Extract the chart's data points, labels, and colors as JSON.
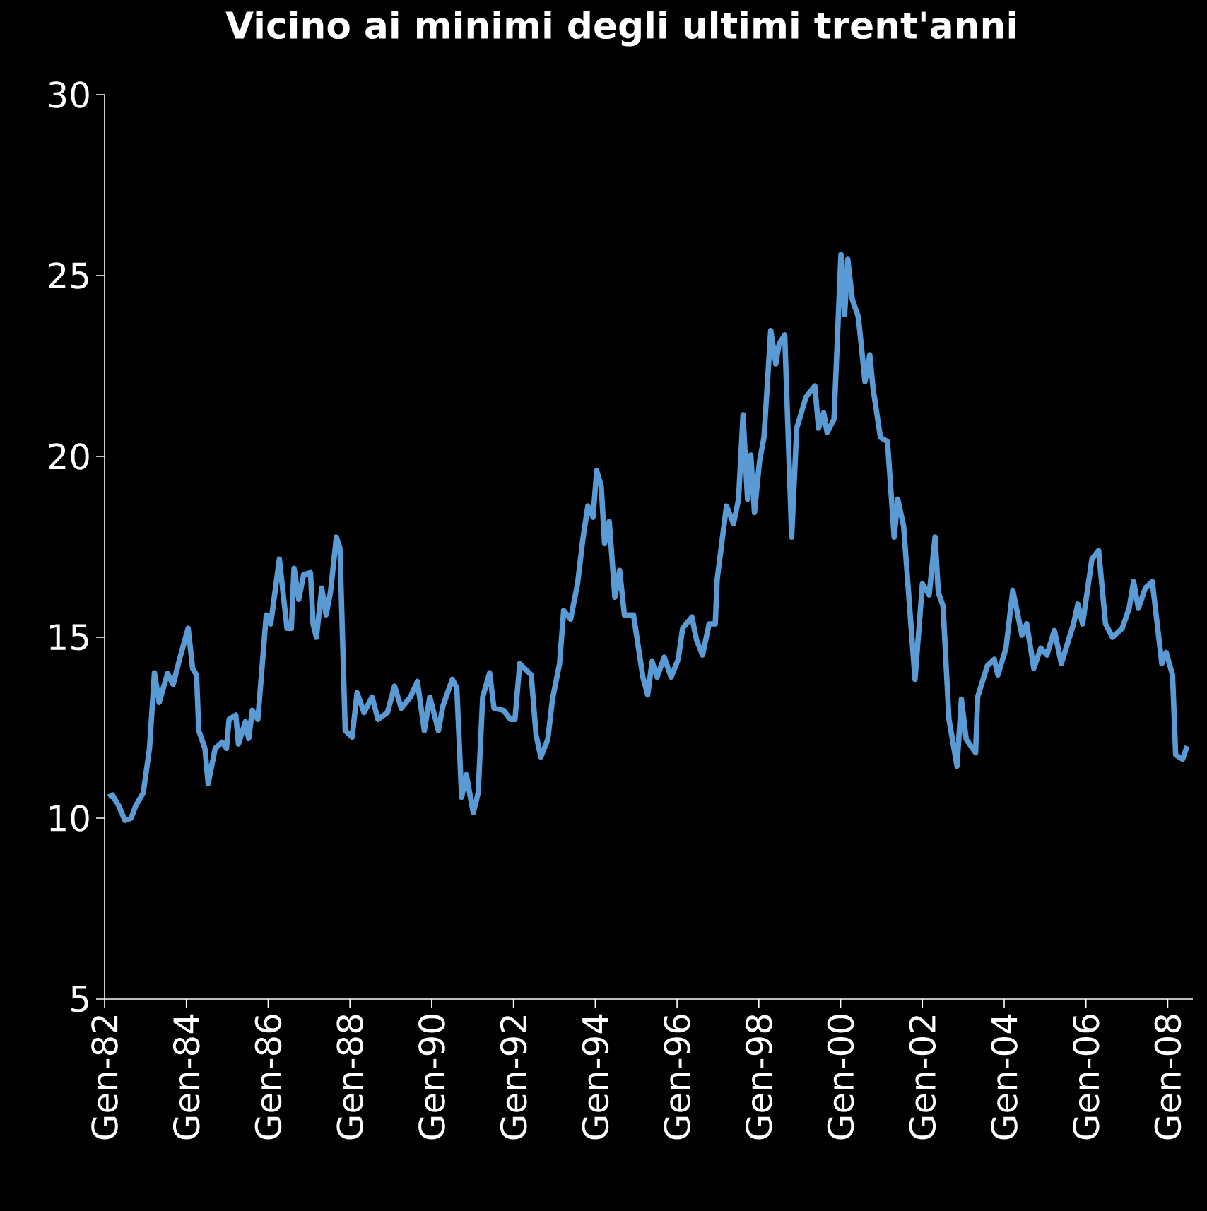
{
  "chart_data": {
    "type": "line",
    "title": "Vicino ai minimi degli ultimi trent'anni",
    "x": [
      "1982-02-06",
      "1982-03-12",
      "1982-05-06",
      "1982-07-01",
      "1982-08-26",
      "1982-10-07",
      "1982-12-12",
      "1983-02-06",
      "1983-03-22",
      "1983-05-03",
      "1983-07-17",
      "1983-09-05",
      "1983-11-06",
      "1984-01-17",
      "1984-02-26",
      "1984-04-01",
      "1984-04-21",
      "1984-06-15",
      "1984-07-14",
      "1984-09-15",
      "1984-11-16",
      "1984-12-25",
      "1985-01-17",
      "1985-03-18",
      "1985-04-11",
      "1985-06-12",
      "1985-07-11",
      "1985-08-13",
      "1985-10-01",
      "1985-12-15",
      "1986-01-24",
      "1986-04-11",
      "1986-06-18",
      "1986-07-27",
      "1986-08-20",
      "1986-10-01",
      "1986-11-13",
      "1987-01-14",
      "1987-02-06",
      "1987-03-08",
      "1987-04-24",
      "1987-06-02",
      "1987-07-11",
      "1987-09-02",
      "1987-10-04",
      "1987-11-20",
      "1988-01-21",
      "1988-03-05",
      "1988-05-06",
      "1988-07-17",
      "1988-09-08",
      "1988-12-02",
      "1989-02-03",
      "1989-04-04",
      "1989-06-25",
      "1989-08-26",
      "1989-10-27",
      "1989-12-15",
      "1990-03-02",
      "1990-04-11",
      "1990-07-04",
      "1990-08-13",
      "1990-09-25",
      "1990-11-06",
      "1991-01-07",
      "1991-02-20",
      "1991-04-01",
      "1991-06-02",
      "1991-07-11",
      "1991-10-04",
      "1991-12-05",
      "1992-01-14",
      "1992-02-26",
      "1992-06-08",
      "1992-07-21",
      "1992-09-02",
      "1992-11-03",
      "1992-12-15",
      "1993-02-16",
      "1993-03-25",
      "1993-05-26",
      "1993-07-27",
      "1993-09-12",
      "1993-10-27",
      "1993-12-12",
      "1994-01-14",
      "1994-02-23",
      "1994-03-25",
      "1994-05-06",
      "1994-06-25",
      "1994-08-06",
      "1994-09-18",
      "1994-12-08",
      "1995-03-02",
      "1995-04-14",
      "1995-05-23",
      "1995-07-07",
      "1995-09-08",
      "1995-11-09",
      "1996-01-11",
      "1996-02-20",
      "1996-05-13",
      "1996-06-22",
      "1996-08-16",
      "1996-10-14",
      "1996-12-08",
      "1996-12-25",
      "1997-03-18",
      "1997-05-20",
      "1997-07-04",
      "1997-08-13",
      "1997-09-22",
      "1997-10-21",
      "1997-11-23",
      "1998-01-07",
      "1998-02-16",
      "1998-04-17",
      "1998-06-02",
      "1998-07-01",
      "1998-08-20",
      "1998-10-21",
      "1998-12-05",
      "1999-02-26",
      "1999-05-16",
      "1999-06-18",
      "1999-08-03",
      "1999-09-02",
      "1999-11-03",
      "2000-01-04",
      "2000-02-06",
      "2000-03-05",
      "2000-04-14",
      "2000-06-08",
      "2000-08-06",
      "2000-09-18",
      "2000-10-17",
      "2000-12-22",
      "2001-02-23",
      "2001-04-24",
      "2001-05-26",
      "2001-07-17",
      "2001-10-27",
      "2002-01-01",
      "2002-03-02",
      "2002-04-24",
      "2002-05-23",
      "2002-07-04",
      "2002-08-26",
      "2002-11-06",
      "2002-12-15",
      "2003-01-27",
      "2003-04-21",
      "2003-05-09",
      "2003-08-03",
      "2003-10-04",
      "2003-11-06",
      "2004-01-17",
      "2004-03-18",
      "2004-06-08",
      "2004-07-21",
      "2004-09-22",
      "2004-11-23",
      "2005-01-17",
      "2005-03-25",
      "2005-05-26",
      "2005-09-12",
      "2005-10-21",
      "2005-12-02",
      "2006-02-23",
      "2006-04-24",
      "2006-06-25",
      "2006-08-26",
      "2006-11-20",
      "2007-01-21",
      "2007-03-02",
      "2007-04-14",
      "2007-06-15",
      "2007-08-16",
      "2007-11-09",
      "2007-12-18",
      "2008-02-13",
      "2008-03-12",
      "2008-05-13",
      "2008-06-22"
    ],
    "series": [
      {
        "color": "#5b9bd5",
        "values": [
          10.58,
          10.64,
          10.35,
          9.94,
          10.0,
          10.35,
          10.7,
          11.93,
          14.02,
          13.2,
          14.0,
          13.7,
          14.45,
          15.25,
          14.14,
          13.96,
          12.42,
          11.93,
          10.95,
          11.93,
          12.1,
          11.93,
          12.73,
          12.85,
          12.05,
          12.67,
          12.2,
          12.98,
          12.73,
          15.62,
          15.37,
          17.16,
          15.25,
          15.25,
          16.91,
          16.05,
          16.73,
          16.79,
          15.37,
          15.0,
          16.36,
          15.62,
          16.24,
          17.77,
          17.46,
          12.42,
          12.24,
          13.47,
          12.92,
          13.35,
          12.73,
          12.92,
          13.65,
          13.04,
          13.35,
          13.78,
          12.42,
          13.35,
          12.42,
          13.1,
          13.84,
          13.6,
          10.58,
          11.2,
          10.15,
          10.7,
          13.35,
          14.02,
          13.04,
          12.98,
          12.73,
          12.73,
          14.27,
          13.96,
          12.3,
          11.69,
          12.18,
          13.29,
          14.27,
          15.74,
          15.5,
          16.48,
          17.71,
          18.63,
          18.32,
          19.61,
          19.18,
          17.59,
          18.2,
          16.11,
          16.85,
          15.62,
          15.62,
          13.9,
          13.41,
          14.33,
          13.9,
          14.45,
          13.9,
          14.39,
          15.25,
          15.56,
          14.94,
          14.51,
          15.37,
          15.37,
          16.6,
          18.63,
          18.14,
          18.82,
          21.15,
          18.82,
          20.04,
          18.45,
          19.86,
          20.53,
          23.48,
          22.56,
          23.11,
          23.36,
          17.77,
          20.78,
          21.64,
          21.95,
          20.78,
          21.21,
          20.66,
          21.03,
          25.58,
          23.92,
          25.45,
          24.35,
          23.85,
          22.07,
          22.81,
          21.89,
          20.53,
          20.41,
          17.77,
          18.82,
          18.08,
          13.84,
          16.48,
          16.17,
          17.77,
          16.24,
          15.87,
          12.73,
          11.44,
          13.29,
          12.18,
          11.81,
          13.35,
          14.21,
          14.39,
          13.96,
          14.7,
          16.3,
          15.06,
          15.37,
          14.14,
          14.7,
          14.51,
          15.19,
          14.27,
          15.37,
          15.92,
          15.37,
          17.16,
          17.4,
          15.37,
          15.0,
          15.25,
          15.8,
          16.54,
          15.8,
          16.36,
          16.54,
          14.27,
          14.58,
          13.96,
          11.75,
          11.63,
          11.99
        ]
      }
    ],
    "xlim": [
      "1982-01-01",
      "2008-08-13"
    ],
    "ylim": [
      5,
      30
    ],
    "xticks": [
      {
        "value": "1982-01-01",
        "label": "Gen-82"
      },
      {
        "value": "1984-01-01",
        "label": "Gen-84"
      },
      {
        "value": "1986-01-01",
        "label": "Gen-86"
      },
      {
        "value": "1988-01-01",
        "label": "Gen-88"
      },
      {
        "value": "1990-01-01",
        "label": "Gen-90"
      },
      {
        "value": "1992-01-01",
        "label": "Gen-92"
      },
      {
        "value": "1994-01-01",
        "label": "Gen-94"
      },
      {
        "value": "1996-01-01",
        "label": "Gen-96"
      },
      {
        "value": "1998-01-01",
        "label": "Gen-98"
      },
      {
        "value": "2000-01-01",
        "label": "Gen-00"
      },
      {
        "value": "2002-01-01",
        "label": "Gen-02"
      },
      {
        "value": "2004-01-01",
        "label": "Gen-04"
      },
      {
        "value": "2006-01-01",
        "label": "Gen-06"
      },
      {
        "value": "2008-01-01",
        "label": "Gen-08"
      }
    ],
    "yticks": [
      5,
      10,
      15,
      20,
      25,
      30
    ]
  }
}
